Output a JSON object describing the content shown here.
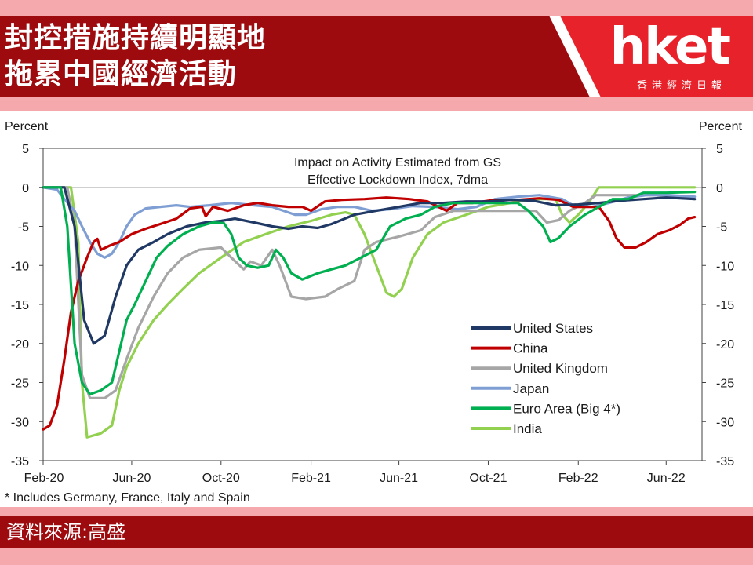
{
  "header": {
    "title_line1": "封控措施持續明顯地",
    "title_line2": "拖累中國經濟活動",
    "logo_text": "hket",
    "logo_subtitle": "香港經濟日報"
  },
  "footer": {
    "source": "資料來源:高盛"
  },
  "colors": {
    "header_bg": "#9e0b0f",
    "stripe": "#f5a9ad",
    "logo_red": "#e8222a"
  },
  "chart_data": {
    "type": "line",
    "title_line1": "Impact on Activity Estimated from GS",
    "title_line2": "Effective Lockdown Index, 7dma",
    "ylabel_left": "Percent",
    "ylabel_right": "Percent",
    "ylim": [
      -35,
      5
    ],
    "yticks": [
      5,
      0,
      -5,
      -10,
      -15,
      -20,
      -25,
      -30,
      -35
    ],
    "xlim": [
      "2020-02-01",
      "2022-07-20"
    ],
    "xticks": [
      "Feb-20",
      "Jun-20",
      "Oct-20",
      "Feb-21",
      "Jun-21",
      "Oct-21",
      "Feb-22",
      "Jun-22"
    ],
    "legend_position": "lower-right",
    "footnote": "* Includes Germany, France, Italy and Spain",
    "series": [
      {
        "name": "United States",
        "color": "#1f3864",
        "points": [
          [
            "2020-02-01",
            0
          ],
          [
            "2020-03-01",
            0
          ],
          [
            "2020-03-15",
            -5
          ],
          [
            "2020-03-28",
            -17
          ],
          [
            "2020-04-10",
            -20
          ],
          [
            "2020-04-25",
            -19
          ],
          [
            "2020-05-10",
            -14
          ],
          [
            "2020-05-25",
            -10
          ],
          [
            "2020-06-10",
            -8
          ],
          [
            "2020-07-01",
            -7
          ],
          [
            "2020-07-20",
            -6
          ],
          [
            "2020-08-15",
            -5
          ],
          [
            "2020-09-10",
            -4.5
          ],
          [
            "2020-10-01",
            -4.3
          ],
          [
            "2020-10-20",
            -4
          ],
          [
            "2020-11-15",
            -4.5
          ],
          [
            "2020-12-10",
            -5
          ],
          [
            "2021-01-01",
            -5.3
          ],
          [
            "2021-01-20",
            -5
          ],
          [
            "2021-02-10",
            -5.2
          ],
          [
            "2021-03-01",
            -4.7
          ],
          [
            "2021-04-01",
            -3.5
          ],
          [
            "2021-05-01",
            -3
          ],
          [
            "2021-06-01",
            -2.5
          ],
          [
            "2021-07-01",
            -2
          ],
          [
            "2021-08-01",
            -2
          ],
          [
            "2021-09-01",
            -1.8
          ],
          [
            "2021-10-01",
            -1.8
          ],
          [
            "2021-11-01",
            -1.6
          ],
          [
            "2021-12-01",
            -1.7
          ],
          [
            "2022-01-01",
            -2.3
          ],
          [
            "2022-02-01",
            -2.2
          ],
          [
            "2022-03-01",
            -2
          ],
          [
            "2022-04-01",
            -1.7
          ],
          [
            "2022-05-01",
            -1.5
          ],
          [
            "2022-06-01",
            -1.3
          ],
          [
            "2022-07-10",
            -1.5
          ]
        ]
      },
      {
        "name": "China",
        "color": "#c00000",
        "points": [
          [
            "2020-02-01",
            -31
          ],
          [
            "2020-02-10",
            -30.5
          ],
          [
            "2020-02-20",
            -28
          ],
          [
            "2020-03-01",
            -22
          ],
          [
            "2020-03-10",
            -16
          ],
          [
            "2020-03-20",
            -12
          ],
          [
            "2020-04-01",
            -9
          ],
          [
            "2020-04-10",
            -7
          ],
          [
            "2020-04-15",
            -6.6
          ],
          [
            "2020-04-20",
            -8
          ],
          [
            "2020-05-01",
            -7.5
          ],
          [
            "2020-05-15",
            -7
          ],
          [
            "2020-06-01",
            -6
          ],
          [
            "2020-06-20",
            -5.3
          ],
          [
            "2020-07-10",
            -4.7
          ],
          [
            "2020-08-01",
            -4
          ],
          [
            "2020-08-20",
            -2.7
          ],
          [
            "2020-09-05",
            -2.5
          ],
          [
            "2020-09-10",
            -3.7
          ],
          [
            "2020-09-20",
            -2.5
          ],
          [
            "2020-10-10",
            -3
          ],
          [
            "2020-11-01",
            -2.3
          ],
          [
            "2020-11-20",
            -2
          ],
          [
            "2020-12-10",
            -2.3
          ],
          [
            "2021-01-01",
            -2.5
          ],
          [
            "2021-01-20",
            -2.5
          ],
          [
            "2021-02-01",
            -3
          ],
          [
            "2021-02-20",
            -1.8
          ],
          [
            "2021-03-15",
            -1.6
          ],
          [
            "2021-04-15",
            -1.5
          ],
          [
            "2021-05-15",
            -1.3
          ],
          [
            "2021-06-15",
            -1.5
          ],
          [
            "2021-07-10",
            -1.8
          ],
          [
            "2021-07-25",
            -2.5
          ],
          [
            "2021-08-05",
            -3
          ],
          [
            "2021-08-20",
            -2
          ],
          [
            "2021-09-10",
            -2
          ],
          [
            "2021-10-10",
            -1.6
          ],
          [
            "2021-11-10",
            -1.6
          ],
          [
            "2021-12-10",
            -1.4
          ],
          [
            "2022-01-05",
            -1.6
          ],
          [
            "2022-01-25",
            -2.5
          ],
          [
            "2022-02-10",
            -2.5
          ],
          [
            "2022-03-01",
            -2.5
          ],
          [
            "2022-03-15",
            -4.3
          ],
          [
            "2022-03-25",
            -6.5
          ],
          [
            "2022-04-05",
            -7.7
          ],
          [
            "2022-04-20",
            -7.7
          ],
          [
            "2022-05-05",
            -7
          ],
          [
            "2022-05-20",
            -6
          ],
          [
            "2022-06-05",
            -5.5
          ],
          [
            "2022-06-20",
            -4.8
          ],
          [
            "2022-07-01",
            -4
          ],
          [
            "2022-07-10",
            -3.8
          ]
        ]
      },
      {
        "name": "United Kingdom",
        "color": "#a6a6a6",
        "points": [
          [
            "2020-02-01",
            0
          ],
          [
            "2020-03-05",
            0
          ],
          [
            "2020-03-15",
            -5
          ],
          [
            "2020-03-25",
            -24
          ],
          [
            "2020-04-05",
            -27
          ],
          [
            "2020-04-25",
            -27
          ],
          [
            "2020-05-10",
            -26
          ],
          [
            "2020-05-25",
            -22
          ],
          [
            "2020-06-10",
            -18
          ],
          [
            "2020-07-01",
            -14
          ],
          [
            "2020-07-20",
            -11
          ],
          [
            "2020-08-10",
            -9
          ],
          [
            "2020-09-01",
            -8
          ],
          [
            "2020-10-01",
            -7.7
          ],
          [
            "2020-10-15",
            -9
          ],
          [
            "2020-11-01",
            -10.5
          ],
          [
            "2020-11-10",
            -9.5
          ],
          [
            "2020-11-25",
            -10
          ],
          [
            "2020-12-10",
            -8
          ],
          [
            "2020-12-20",
            -10
          ],
          [
            "2021-01-05",
            -14
          ],
          [
            "2021-01-25",
            -14.3
          ],
          [
            "2021-02-20",
            -14
          ],
          [
            "2021-03-10",
            -13
          ],
          [
            "2021-04-01",
            -12
          ],
          [
            "2021-04-15",
            -8
          ],
          [
            "2021-05-01",
            -7
          ],
          [
            "2021-06-01",
            -6.3
          ],
          [
            "2021-07-01",
            -5.5
          ],
          [
            "2021-07-20",
            -3.8
          ],
          [
            "2021-08-15",
            -3
          ],
          [
            "2021-09-15",
            -3
          ],
          [
            "2021-10-15",
            -3
          ],
          [
            "2021-11-10",
            -3
          ],
          [
            "2021-12-05",
            -3
          ],
          [
            "2021-12-20",
            -4.5
          ],
          [
            "2022-01-05",
            -4.2
          ],
          [
            "2022-01-20",
            -3
          ],
          [
            "2022-02-10",
            -2
          ],
          [
            "2022-02-25",
            -1
          ],
          [
            "2022-03-15",
            -1
          ],
          [
            "2022-04-15",
            -1
          ],
          [
            "2022-05-15",
            -1
          ],
          [
            "2022-06-15",
            -1.2
          ],
          [
            "2022-07-10",
            -1.5
          ]
        ]
      },
      {
        "name": "Japan",
        "color": "#7f9fd4",
        "points": [
          [
            "2020-02-01",
            0
          ],
          [
            "2020-02-20",
            -0.3
          ],
          [
            "2020-03-01",
            -1.5
          ],
          [
            "2020-03-15",
            -3
          ],
          [
            "2020-03-25",
            -5
          ],
          [
            "2020-04-05",
            -7
          ],
          [
            "2020-04-15",
            -8.5
          ],
          [
            "2020-04-25",
            -9
          ],
          [
            "2020-05-05",
            -8.5
          ],
          [
            "2020-05-15",
            -7
          ],
          [
            "2020-05-25",
            -5
          ],
          [
            "2020-06-05",
            -3.5
          ],
          [
            "2020-06-20",
            -2.7
          ],
          [
            "2020-07-10",
            -2.5
          ],
          [
            "2020-08-01",
            -2.3
          ],
          [
            "2020-08-20",
            -2.5
          ],
          [
            "2020-09-15",
            -2.3
          ],
          [
            "2020-10-15",
            -2
          ],
          [
            "2020-11-15",
            -2.3
          ],
          [
            "2020-12-10",
            -2.5
          ],
          [
            "2021-01-10",
            -3.5
          ],
          [
            "2021-01-25",
            -3.5
          ],
          [
            "2021-02-15",
            -2.8
          ],
          [
            "2021-03-10",
            -2.5
          ],
          [
            "2021-04-01",
            -2.5
          ],
          [
            "2021-04-25",
            -3
          ],
          [
            "2021-05-20",
            -2.8
          ],
          [
            "2021-06-20",
            -2.4
          ],
          [
            "2021-07-20",
            -2.5
          ],
          [
            "2021-08-20",
            -2.8
          ],
          [
            "2021-09-15",
            -2.5
          ],
          [
            "2021-10-10",
            -1.5
          ],
          [
            "2021-11-10",
            -1.2
          ],
          [
            "2021-12-10",
            -1
          ],
          [
            "2022-01-10",
            -1.5
          ],
          [
            "2022-01-25",
            -2.3
          ],
          [
            "2022-02-20",
            -2.5
          ],
          [
            "2022-03-15",
            -2
          ],
          [
            "2022-04-10",
            -1.3
          ],
          [
            "2022-05-05",
            -1
          ],
          [
            "2022-06-05",
            -1
          ],
          [
            "2022-07-10",
            -1.2
          ]
        ]
      },
      {
        "name": "Euro Area (Big 4*)",
        "color": "#00b050",
        "points": [
          [
            "2020-02-01",
            0
          ],
          [
            "2020-02-25",
            0
          ],
          [
            "2020-03-05",
            -5
          ],
          [
            "2020-03-15",
            -20
          ],
          [
            "2020-03-25",
            -25
          ],
          [
            "2020-04-05",
            -26.5
          ],
          [
            "2020-04-20",
            -26
          ],
          [
            "2020-05-05",
            -25
          ],
          [
            "2020-05-15",
            -21
          ],
          [
            "2020-05-25",
            -17
          ],
          [
            "2020-06-05",
            -15
          ],
          [
            "2020-06-20",
            -12
          ],
          [
            "2020-07-05",
            -9
          ],
          [
            "2020-07-20",
            -7.5
          ],
          [
            "2020-08-10",
            -6
          ],
          [
            "2020-09-01",
            -5
          ],
          [
            "2020-09-20",
            -4.5
          ],
          [
            "2020-10-05",
            -4.6
          ],
          [
            "2020-10-15",
            -6
          ],
          [
            "2020-10-25",
            -9
          ],
          [
            "2020-11-05",
            -10
          ],
          [
            "2020-11-20",
            -10.3
          ],
          [
            "2020-12-05",
            -10
          ],
          [
            "2020-12-15",
            -8
          ],
          [
            "2020-12-25",
            -9
          ],
          [
            "2021-01-05",
            -11
          ],
          [
            "2021-01-20",
            -11.8
          ],
          [
            "2021-02-10",
            -11
          ],
          [
            "2021-03-01",
            -10.5
          ],
          [
            "2021-03-20",
            -10
          ],
          [
            "2021-04-10",
            -9
          ],
          [
            "2021-05-01",
            -8
          ],
          [
            "2021-05-20",
            -5
          ],
          [
            "2021-06-10",
            -4
          ],
          [
            "2021-07-01",
            -3.5
          ],
          [
            "2021-07-20",
            -2.5
          ],
          [
            "2021-08-15",
            -2
          ],
          [
            "2021-09-15",
            -2
          ],
          [
            "2021-10-15",
            -2
          ],
          [
            "2021-11-10",
            -2
          ],
          [
            "2021-11-25",
            -3
          ],
          [
            "2021-12-15",
            -5
          ],
          [
            "2021-12-25",
            -7
          ],
          [
            "2022-01-05",
            -6.5
          ],
          [
            "2022-01-20",
            -5
          ],
          [
            "2022-02-10",
            -3.5
          ],
          [
            "2022-03-01",
            -2.5
          ],
          [
            "2022-03-20",
            -1.5
          ],
          [
            "2022-04-10",
            -1.5
          ],
          [
            "2022-05-01",
            -0.7
          ],
          [
            "2022-06-01",
            -0.7
          ],
          [
            "2022-07-10",
            -0.6
          ]
        ]
      },
      {
        "name": "India",
        "color": "#92d050",
        "points": [
          [
            "2020-02-01",
            0
          ],
          [
            "2020-03-10",
            0
          ],
          [
            "2020-03-20",
            -7
          ],
          [
            "2020-03-25",
            -25
          ],
          [
            "2020-04-01",
            -32
          ],
          [
            "2020-04-20",
            -31.5
          ],
          [
            "2020-05-05",
            -30.5
          ],
          [
            "2020-05-15",
            -26
          ],
          [
            "2020-05-25",
            -23
          ],
          [
            "2020-06-10",
            -20
          ],
          [
            "2020-07-01",
            -17
          ],
          [
            "2020-07-20",
            -15
          ],
          [
            "2020-08-10",
            -13
          ],
          [
            "2020-09-01",
            -11
          ],
          [
            "2020-10-01",
            -9
          ],
          [
            "2020-11-01",
            -7
          ],
          [
            "2020-12-01",
            -6
          ],
          [
            "2021-01-01",
            -5
          ],
          [
            "2021-02-01",
            -4.3
          ],
          [
            "2021-03-01",
            -3.5
          ],
          [
            "2021-03-20",
            -3.2
          ],
          [
            "2021-04-01",
            -3.5
          ],
          [
            "2021-04-15",
            -6
          ],
          [
            "2021-05-01",
            -10
          ],
          [
            "2021-05-15",
            -13.5
          ],
          [
            "2021-05-25",
            -14
          ],
          [
            "2021-06-05",
            -13
          ],
          [
            "2021-06-20",
            -9
          ],
          [
            "2021-07-10",
            -6
          ],
          [
            "2021-08-01",
            -4.5
          ],
          [
            "2021-09-01",
            -3.5
          ],
          [
            "2021-10-01",
            -2.5
          ],
          [
            "2021-11-01",
            -2
          ],
          [
            "2021-12-01",
            -1.5
          ],
          [
            "2022-01-01",
            -1.5
          ],
          [
            "2022-01-10",
            -3.5
          ],
          [
            "2022-01-20",
            -4.5
          ],
          [
            "2022-02-01",
            -3.5
          ],
          [
            "2022-02-15",
            -2
          ],
          [
            "2022-03-01",
            0
          ],
          [
            "2022-04-01",
            0
          ],
          [
            "2022-05-01",
            0
          ],
          [
            "2022-06-01",
            0
          ],
          [
            "2022-07-10",
            0
          ]
        ]
      }
    ]
  }
}
